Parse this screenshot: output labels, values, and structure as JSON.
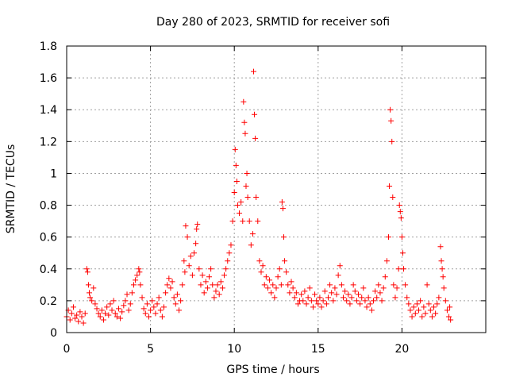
{
  "chart_data": {
    "type": "scatter",
    "title": "Day 280 of 2023, SRMTID for receiver sofi",
    "xlabel": "GPS time / hours",
    "ylabel": "SRMTID / TECUs",
    "xlim": [
      0,
      25
    ],
    "ylim": [
      0,
      1.8
    ],
    "xticks": [
      0,
      5,
      10,
      15,
      20
    ],
    "xtick_labels": [
      "0",
      "5",
      "10",
      "15",
      "20"
    ],
    "yticks": [
      0,
      0.2,
      0.4,
      0.6,
      0.8,
      1.0,
      1.2,
      1.4,
      1.6,
      1.8
    ],
    "ytick_labels": [
      "0",
      "0.2",
      "0.4",
      "0.6",
      "0.8",
      "1",
      "1.2",
      "1.4",
      "1.6",
      "1.8"
    ],
    "grid": true,
    "marker": "+",
    "color": "#ff0000",
    "series": [
      {
        "name": "SRMTID",
        "points": [
          [
            0.0,
            0.1
          ],
          [
            0.1,
            0.14
          ],
          [
            0.2,
            0.08
          ],
          [
            0.3,
            0.12
          ],
          [
            0.4,
            0.16
          ],
          [
            0.5,
            0.09
          ],
          [
            0.6,
            0.11
          ],
          [
            0.7,
            0.07
          ],
          [
            0.8,
            0.13
          ],
          [
            0.9,
            0.1
          ],
          [
            1.0,
            0.06
          ],
          [
            1.1,
            0.12
          ],
          [
            1.2,
            0.4
          ],
          [
            1.25,
            0.38
          ],
          [
            1.3,
            0.3
          ],
          [
            1.35,
            0.25
          ],
          [
            1.4,
            0.22
          ],
          [
            1.5,
            0.2
          ],
          [
            1.6,
            0.28
          ],
          [
            1.7,
            0.18
          ],
          [
            1.8,
            0.15
          ],
          [
            1.9,
            0.12
          ],
          [
            2.0,
            0.1
          ],
          [
            2.1,
            0.14
          ],
          [
            2.2,
            0.08
          ],
          [
            2.3,
            0.12
          ],
          [
            2.4,
            0.16
          ],
          [
            2.5,
            0.11
          ],
          [
            2.6,
            0.18
          ],
          [
            2.7,
            0.14
          ],
          [
            2.8,
            0.2
          ],
          [
            2.9,
            0.12
          ],
          [
            3.0,
            0.1
          ],
          [
            3.1,
            0.15
          ],
          [
            3.2,
            0.09
          ],
          [
            3.3,
            0.13
          ],
          [
            3.4,
            0.17
          ],
          [
            3.5,
            0.2
          ],
          [
            3.6,
            0.24
          ],
          [
            3.7,
            0.14
          ],
          [
            3.8,
            0.18
          ],
          [
            3.9,
            0.25
          ],
          [
            4.0,
            0.3
          ],
          [
            4.1,
            0.33
          ],
          [
            4.2,
            0.36
          ],
          [
            4.3,
            0.4
          ],
          [
            4.35,
            0.38
          ],
          [
            4.4,
            0.3
          ],
          [
            4.5,
            0.22
          ],
          [
            4.6,
            0.15
          ],
          [
            4.7,
            0.12
          ],
          [
            4.8,
            0.18
          ],
          [
            4.9,
            0.1
          ],
          [
            5.0,
            0.14
          ],
          [
            5.1,
            0.2
          ],
          [
            5.2,
            0.16
          ],
          [
            5.3,
            0.12
          ],
          [
            5.4,
            0.18
          ],
          [
            5.5,
            0.22
          ],
          [
            5.6,
            0.14
          ],
          [
            5.7,
            0.1
          ],
          [
            5.8,
            0.16
          ],
          [
            5.9,
            0.25
          ],
          [
            6.0,
            0.3
          ],
          [
            6.1,
            0.34
          ],
          [
            6.2,
            0.28
          ],
          [
            6.3,
            0.32
          ],
          [
            6.4,
            0.22
          ],
          [
            6.5,
            0.18
          ],
          [
            6.6,
            0.24
          ],
          [
            6.7,
            0.14
          ],
          [
            6.8,
            0.2
          ],
          [
            6.9,
            0.3
          ],
          [
            7.0,
            0.45
          ],
          [
            7.05,
            0.38
          ],
          [
            7.1,
            0.67
          ],
          [
            7.2,
            0.6
          ],
          [
            7.3,
            0.42
          ],
          [
            7.4,
            0.48
          ],
          [
            7.5,
            0.36
          ],
          [
            7.6,
            0.5
          ],
          [
            7.7,
            0.56
          ],
          [
            7.75,
            0.65
          ],
          [
            7.8,
            0.68
          ],
          [
            7.9,
            0.4
          ],
          [
            8.0,
            0.3
          ],
          [
            8.1,
            0.36
          ],
          [
            8.2,
            0.25
          ],
          [
            8.3,
            0.32
          ],
          [
            8.4,
            0.28
          ],
          [
            8.5,
            0.35
          ],
          [
            8.6,
            0.4
          ],
          [
            8.7,
            0.3
          ],
          [
            8.8,
            0.22
          ],
          [
            8.9,
            0.26
          ],
          [
            9.0,
            0.3
          ],
          [
            9.1,
            0.24
          ],
          [
            9.2,
            0.32
          ],
          [
            9.3,
            0.28
          ],
          [
            9.4,
            0.36
          ],
          [
            9.5,
            0.4
          ],
          [
            9.6,
            0.45
          ],
          [
            9.7,
            0.5
          ],
          [
            9.8,
            0.55
          ],
          [
            9.9,
            0.7
          ],
          [
            10.0,
            0.88
          ],
          [
            10.05,
            1.15
          ],
          [
            10.1,
            1.05
          ],
          [
            10.15,
            0.95
          ],
          [
            10.2,
            0.8
          ],
          [
            10.3,
            0.75
          ],
          [
            10.4,
            0.82
          ],
          [
            10.5,
            0.7
          ],
          [
            10.55,
            1.45
          ],
          [
            10.6,
            1.32
          ],
          [
            10.65,
            1.25
          ],
          [
            10.7,
            0.92
          ],
          [
            10.75,
            1.0
          ],
          [
            10.8,
            0.85
          ],
          [
            10.9,
            0.7
          ],
          [
            11.0,
            0.55
          ],
          [
            11.1,
            0.62
          ],
          [
            11.15,
            1.64
          ],
          [
            11.2,
            1.37
          ],
          [
            11.25,
            1.22
          ],
          [
            11.3,
            0.85
          ],
          [
            11.4,
            0.7
          ],
          [
            11.5,
            0.45
          ],
          [
            11.6,
            0.38
          ],
          [
            11.7,
            0.42
          ],
          [
            11.8,
            0.3
          ],
          [
            11.9,
            0.35
          ],
          [
            12.0,
            0.28
          ],
          [
            12.1,
            0.33
          ],
          [
            12.2,
            0.25
          ],
          [
            12.3,
            0.3
          ],
          [
            12.4,
            0.22
          ],
          [
            12.5,
            0.28
          ],
          [
            12.6,
            0.35
          ],
          [
            12.7,
            0.4
          ],
          [
            12.8,
            0.3
          ],
          [
            12.85,
            0.82
          ],
          [
            12.9,
            0.78
          ],
          [
            12.95,
            0.6
          ],
          [
            13.0,
            0.45
          ],
          [
            13.1,
            0.38
          ],
          [
            13.2,
            0.3
          ],
          [
            13.3,
            0.25
          ],
          [
            13.4,
            0.32
          ],
          [
            13.5,
            0.28
          ],
          [
            13.6,
            0.22
          ],
          [
            13.7,
            0.25
          ],
          [
            13.8,
            0.18
          ],
          [
            13.9,
            0.2
          ],
          [
            14.0,
            0.24
          ],
          [
            14.1,
            0.2
          ],
          [
            14.2,
            0.26
          ],
          [
            14.3,
            0.18
          ],
          [
            14.4,
            0.22
          ],
          [
            14.5,
            0.28
          ],
          [
            14.6,
            0.2
          ],
          [
            14.7,
            0.16
          ],
          [
            14.8,
            0.24
          ],
          [
            14.9,
            0.2
          ],
          [
            15.0,
            0.18
          ],
          [
            15.1,
            0.22
          ],
          [
            15.2,
            0.16
          ],
          [
            15.3,
            0.2
          ],
          [
            15.4,
            0.26
          ],
          [
            15.5,
            0.18
          ],
          [
            15.6,
            0.22
          ],
          [
            15.7,
            0.3
          ],
          [
            15.8,
            0.25
          ],
          [
            15.9,
            0.2
          ],
          [
            16.0,
            0.28
          ],
          [
            16.1,
            0.24
          ],
          [
            16.2,
            0.36
          ],
          [
            16.3,
            0.42
          ],
          [
            16.4,
            0.3
          ],
          [
            16.5,
            0.22
          ],
          [
            16.6,
            0.26
          ],
          [
            16.7,
            0.2
          ],
          [
            16.8,
            0.24
          ],
          [
            16.9,
            0.18
          ],
          [
            17.0,
            0.22
          ],
          [
            17.1,
            0.3
          ],
          [
            17.2,
            0.26
          ],
          [
            17.3,
            0.2
          ],
          [
            17.4,
            0.24
          ],
          [
            17.5,
            0.18
          ],
          [
            17.6,
            0.22
          ],
          [
            17.7,
            0.28
          ],
          [
            17.8,
            0.2
          ],
          [
            17.9,
            0.16
          ],
          [
            18.0,
            0.22
          ],
          [
            18.1,
            0.18
          ],
          [
            18.2,
            0.14
          ],
          [
            18.3,
            0.2
          ],
          [
            18.4,
            0.26
          ],
          [
            18.5,
            0.22
          ],
          [
            18.6,
            0.3
          ],
          [
            18.7,
            0.25
          ],
          [
            18.8,
            0.2
          ],
          [
            18.9,
            0.28
          ],
          [
            19.0,
            0.35
          ],
          [
            19.1,
            0.45
          ],
          [
            19.2,
            0.6
          ],
          [
            19.25,
            0.92
          ],
          [
            19.3,
            1.4
          ],
          [
            19.35,
            1.33
          ],
          [
            19.4,
            1.2
          ],
          [
            19.45,
            0.85
          ],
          [
            19.5,
            0.3
          ],
          [
            19.6,
            0.22
          ],
          [
            19.7,
            0.28
          ],
          [
            19.8,
            0.4
          ],
          [
            19.85,
            0.8
          ],
          [
            19.9,
            0.76
          ],
          [
            19.95,
            0.72
          ],
          [
            20.0,
            0.6
          ],
          [
            20.05,
            0.5
          ],
          [
            20.1,
            0.4
          ],
          [
            20.2,
            0.3
          ],
          [
            20.3,
            0.22
          ],
          [
            20.4,
            0.18
          ],
          [
            20.5,
            0.14
          ],
          [
            20.6,
            0.1
          ],
          [
            20.7,
            0.16
          ],
          [
            20.8,
            0.12
          ],
          [
            20.9,
            0.18
          ],
          [
            21.0,
            0.14
          ],
          [
            21.1,
            0.2
          ],
          [
            21.2,
            0.1
          ],
          [
            21.3,
            0.16
          ],
          [
            21.4,
            0.12
          ],
          [
            21.5,
            0.3
          ],
          [
            21.6,
            0.18
          ],
          [
            21.7,
            0.14
          ],
          [
            21.8,
            0.1
          ],
          [
            21.9,
            0.16
          ],
          [
            22.0,
            0.12
          ],
          [
            22.1,
            0.18
          ],
          [
            22.2,
            0.22
          ],
          [
            22.3,
            0.54
          ],
          [
            22.35,
            0.45
          ],
          [
            22.4,
            0.4
          ],
          [
            22.45,
            0.35
          ],
          [
            22.5,
            0.28
          ],
          [
            22.6,
            0.2
          ],
          [
            22.7,
            0.14
          ],
          [
            22.8,
            0.1
          ],
          [
            22.85,
            0.16
          ],
          [
            22.9,
            0.08
          ]
        ]
      }
    ]
  }
}
